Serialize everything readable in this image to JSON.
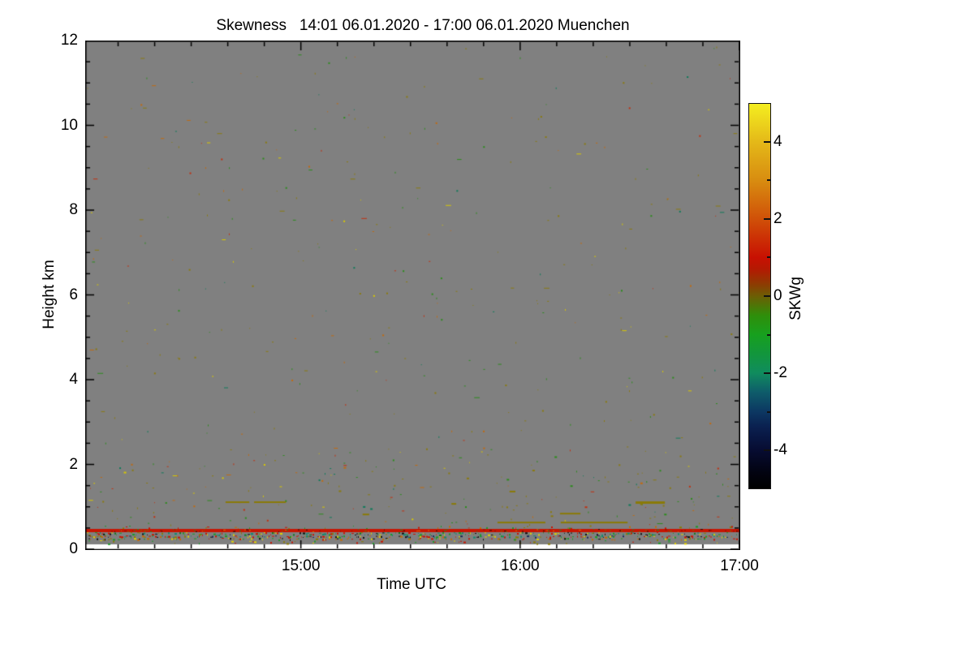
{
  "page": {
    "background": "#ffffff"
  },
  "chart_data": {
    "type": "heatmap",
    "title": "Skewness   14:01 06.01.2020 - 17:00 06.01.2020 Muenchen",
    "instrument_product": "Skewness",
    "time_start_utc": "14:01 06.01.2020",
    "time_end_utc": "17:00 06.01.2020",
    "station": "Muenchen",
    "xlabel": "Time UTC",
    "ylabel": "Height km",
    "x_axis": {
      "total_span_minutes": 179,
      "major_ticks": [
        {
          "label": "15:00",
          "minutes": 59
        },
        {
          "label": "16:00",
          "minutes": 119
        },
        {
          "label": "17:00",
          "minutes": 179
        }
      ],
      "minor_tick_minutes": [
        9,
        19,
        29,
        39,
        49,
        69,
        79,
        89,
        99,
        109,
        129,
        139,
        149,
        159,
        169
      ]
    },
    "y_axis": {
      "min_km": 0,
      "max_km": 12,
      "major_ticks": [
        {
          "label": "12",
          "km": 12
        },
        {
          "label": "10",
          "km": 10
        },
        {
          "label": "8",
          "km": 8
        },
        {
          "label": "6",
          "km": 6
        },
        {
          "label": "4",
          "km": 4
        },
        {
          "label": "2",
          "km": 2
        },
        {
          "label": "0",
          "km": 0
        }
      ],
      "minor_tick_every_km": 0.5
    },
    "colorbar": {
      "label": "SKWg",
      "min": -5,
      "max": 5,
      "major_ticks": [
        {
          "label": "4",
          "value": 4
        },
        {
          "label": "2",
          "value": 2
        },
        {
          "label": "0",
          "value": 0
        },
        {
          "label": "-2",
          "value": -2
        },
        {
          "label": "-4",
          "value": -4
        }
      ],
      "minor_tick_values": [
        3,
        1,
        -1,
        -3
      ],
      "gradient_stops": [
        [
          -5.0,
          "#000000"
        ],
        [
          -4.6,
          "#020310"
        ],
        [
          -4.0,
          "#070c32"
        ],
        [
          -3.4,
          "#0a2050"
        ],
        [
          -3.0,
          "#0c3862"
        ],
        [
          -2.5,
          "#0e5c6a"
        ],
        [
          -2.0,
          "#108c5e"
        ],
        [
          -1.5,
          "#12963c"
        ],
        [
          -1.0,
          "#17a01e"
        ],
        [
          -0.5,
          "#2f8e0a"
        ],
        [
          0.0,
          "#6c5e04"
        ],
        [
          0.3,
          "#8c3c02"
        ],
        [
          0.7,
          "#b41a02"
        ],
        [
          1.0,
          "#c81002"
        ],
        [
          2.0,
          "#d05008"
        ],
        [
          3.0,
          "#d88c10"
        ],
        [
          4.0,
          "#e4b818"
        ],
        [
          5.0,
          "#f4ee20"
        ]
      ]
    },
    "field": {
      "background_color": "#808080",
      "note": "uniform grey field (no signal) with sparse coloured noise specks",
      "lowest_data_km": 0.115
    },
    "features": {
      "red_surface_band": {
        "km_bottom": 0.402,
        "km_top": 0.478,
        "color": "#c81400",
        "mottle_colors": [
          "#8c1000",
          "#d86a00",
          "#7a6a00",
          "#1c8c28",
          "#300800"
        ],
        "mottle_density": 0.22
      },
      "surface_speckle_rows": [
        {
          "km_bottom": 0.478,
          "km_top": 0.555,
          "density": 0.1,
          "colors": [
            "#c81400",
            "#1c9a28",
            "#8a7a00",
            "#c86a00"
          ]
        },
        {
          "km_bottom": 0.325,
          "km_top": 0.402,
          "density": 0.55,
          "colors": [
            "#1c9a28",
            "#0f7a1e",
            "#c81400",
            "#8a7a00",
            "#e0d000",
            "#101010",
            "#0f8a6e",
            "#1c9a28"
          ]
        },
        {
          "km_bottom": 0.268,
          "km_top": 0.325,
          "density": 0.5,
          "colors": [
            "#c81400",
            "#1c9a28",
            "#e0d000",
            "#c86a00",
            "#101010",
            "#1a2a5a",
            "#0f8a6e",
            "#8a7a00",
            "#c81400"
          ]
        },
        {
          "km_bottom": 0.211,
          "km_top": 0.268,
          "density": 0.3,
          "colors": [
            "#c81400",
            "#1c9a28",
            "#e0d000",
            "#8a7a00",
            "#101010",
            "#c86a00"
          ]
        },
        {
          "km_bottom": 0.115,
          "km_top": 0.211,
          "density": 0.1,
          "colors": [
            "#c81400",
            "#1c9a28",
            "#8a7a00",
            "#e0d000"
          ]
        }
      ],
      "cloud_dashes": {
        "color": "#8a7a08",
        "segments": [
          {
            "t0_min": 38.4,
            "t1_min": 44.9,
            "km": 1.11,
            "thickness_px": 2
          },
          {
            "t0_min": 46.2,
            "t1_min": 54.9,
            "km": 1.11,
            "thickness_px": 2
          },
          {
            "t0_min": 75.9,
            "t1_min": 77.7,
            "km": 0.82,
            "thickness_px": 2
          },
          {
            "t0_min": 100.2,
            "t1_min": 101.5,
            "km": 1.07,
            "thickness_px": 2
          },
          {
            "t0_min": 116.1,
            "t1_min": 117.7,
            "km": 1.36,
            "thickness_px": 2
          },
          {
            "t0_min": 112.8,
            "t1_min": 125.9,
            "km": 0.63,
            "thickness_px": 2
          },
          {
            "t0_min": 130.1,
            "t1_min": 148.4,
            "km": 0.63,
            "thickness_px": 2
          },
          {
            "t0_min": 129.9,
            "t1_min": 135.5,
            "km": 0.84,
            "thickness_px": 2
          },
          {
            "t0_min": 150.6,
            "t1_min": 158.6,
            "km": 1.1,
            "thickness_px": 3
          }
        ]
      },
      "noise": {
        "seed": 1337,
        "field_speck_count": 380,
        "low_level_extra_speck_count": 140,
        "field_speck_colors": [
          "#8a7a10",
          "#8a7a10",
          "#8a7a10",
          "#c06a10",
          "#2c8c1c",
          "#c03010",
          "#8a7a10",
          "#2c8c1c",
          "#c06a10",
          "#d8c800",
          "#0f7a5a"
        ]
      }
    }
  }
}
